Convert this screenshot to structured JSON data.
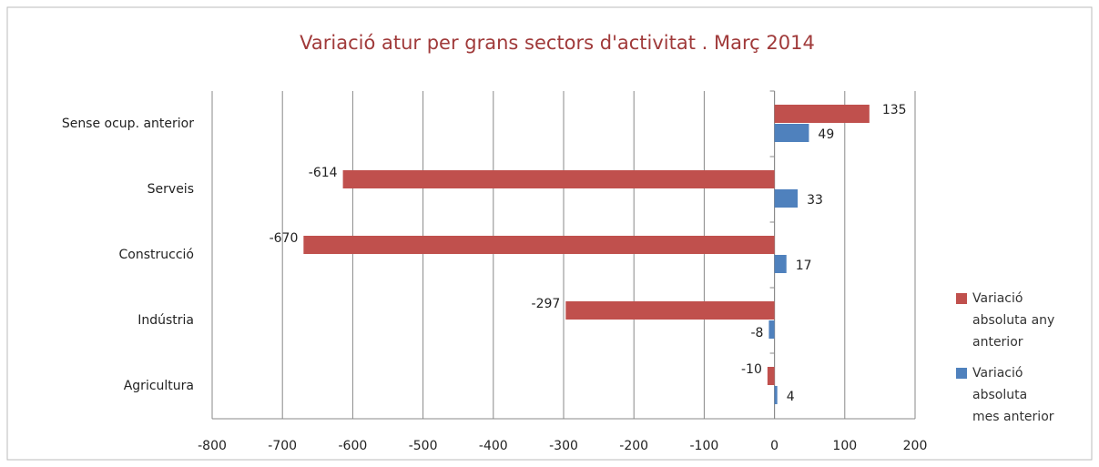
{
  "chart_data": {
    "type": "bar",
    "orientation": "horizontal",
    "title": "Variació atur per grans sectors d'activitat . Març 2014",
    "categories": [
      "Sense ocup. anterior",
      "Serveis",
      "Construcció",
      "Indústria",
      "Agricultura"
    ],
    "series": [
      {
        "name": "Variació absoluta any anterior",
        "color": "#c0504d",
        "values": [
          135,
          -614,
          -670,
          -297,
          -10
        ]
      },
      {
        "name": "Variació absoluta mes anterior",
        "color": "#4f81bd",
        "values": [
          49,
          33,
          17,
          -8,
          4
        ]
      }
    ],
    "xlim": [
      -800,
      200
    ],
    "xticks": [
      -800,
      -700,
      -600,
      -500,
      -400,
      -300,
      -200,
      -100,
      0,
      100,
      200
    ],
    "grid": true,
    "legend": "right"
  }
}
